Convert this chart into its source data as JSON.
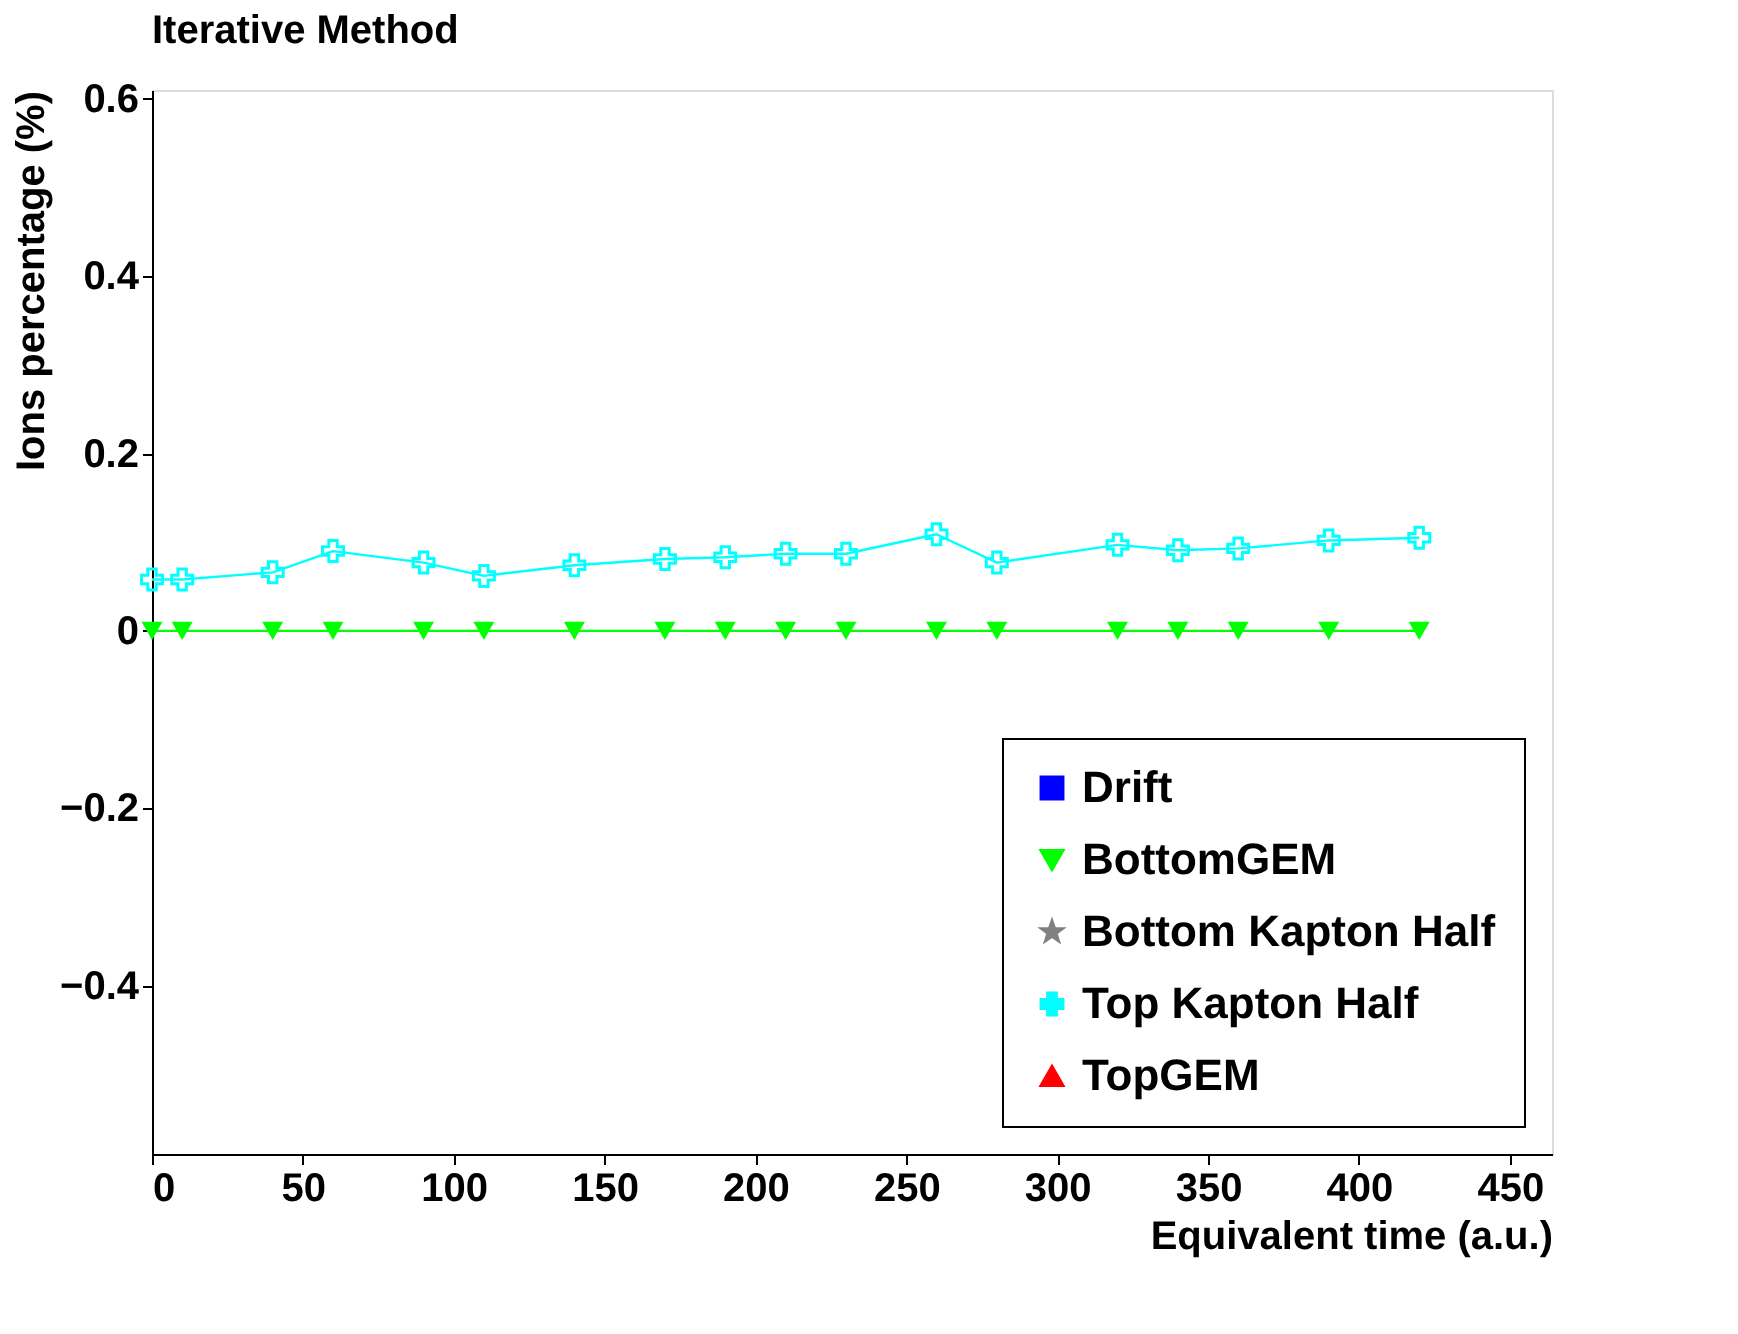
{
  "chart_data": {
    "type": "line",
    "title": "Iterative Method",
    "xlabel": "Equivalent time (a.u.)",
    "ylabel": "Ions percentage (%)",
    "x": [
      0,
      10,
      40,
      60,
      90,
      110,
      140,
      170,
      190,
      210,
      230,
      260,
      280,
      320,
      340,
      360,
      390,
      420
    ],
    "series": [
      {
        "name": "Drift",
        "color": "#0000ff",
        "marker": "square",
        "values": [
          null,
          null,
          null,
          null,
          null,
          null,
          null,
          null,
          null,
          null,
          null,
          null,
          null,
          null,
          null,
          null,
          null,
          null
        ]
      },
      {
        "name": "BottomGEM",
        "color": "#00ff00",
        "marker": "triangle-down",
        "values": [
          0,
          0,
          0,
          0,
          0,
          0,
          0,
          0,
          0,
          0,
          0,
          0,
          0,
          0,
          0,
          0,
          0,
          0
        ]
      },
      {
        "name": "Bottom Kapton Half",
        "color": "#808080",
        "marker": "star",
        "values": [
          null,
          null,
          null,
          null,
          null,
          null,
          null,
          null,
          null,
          null,
          null,
          null,
          null,
          null,
          null,
          null,
          null,
          null
        ]
      },
      {
        "name": "Top Kapton Half",
        "color": "#00ffff",
        "marker": "cross",
        "values": [
          0.058,
          0.058,
          0.066,
          0.09,
          0.077,
          0.062,
          0.074,
          0.081,
          0.083,
          0.087,
          0.087,
          0.109,
          0.077,
          0.097,
          0.091,
          0.093,
          0.102,
          0.105
        ]
      },
      {
        "name": "TopGEM",
        "color": "#ff0000",
        "marker": "triangle",
        "values": [
          null,
          null,
          null,
          null,
          null,
          null,
          null,
          null,
          null,
          null,
          null,
          null,
          null,
          null,
          null,
          null,
          null,
          null
        ]
      }
    ],
    "xlim": [
      0,
      464
    ],
    "xticks": [
      0,
      50,
      100,
      150,
      200,
      250,
      300,
      350,
      400,
      450
    ],
    "ylim": [
      -0.59,
      0.61
    ],
    "yticks": [
      -0.4,
      -0.2,
      0,
      0.2,
      0.4,
      0.6
    ],
    "grid": false,
    "legend": "bottom right",
    "line_style": "solid"
  }
}
